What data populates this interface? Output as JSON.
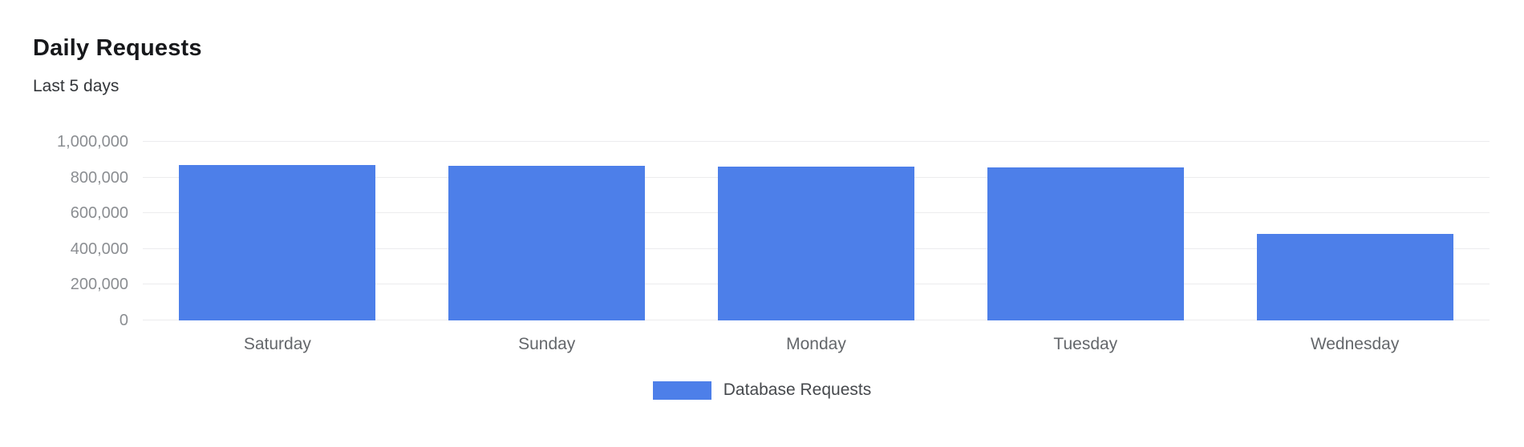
{
  "chart_data": {
    "type": "bar",
    "title": "Daily Requests",
    "subtitle": "Last 5 days",
    "categories": [
      "Saturday",
      "Sunday",
      "Monday",
      "Tuesday",
      "Wednesday"
    ],
    "series": [
      {
        "name": "Database Requests",
        "color": "#4d7fe9",
        "values": [
          870000,
          865000,
          861000,
          857000,
          484000
        ]
      }
    ],
    "xlabel": "",
    "ylabel": "",
    "ylim": [
      0,
      1000000
    ],
    "yticks": [
      0,
      200000,
      400000,
      600000,
      800000,
      1000000
    ],
    "ytick_labels": [
      "0",
      "200,000",
      "400,000",
      "600,000",
      "800,000",
      "1,000,000"
    ],
    "grid": true,
    "legend_position": "bottom"
  }
}
